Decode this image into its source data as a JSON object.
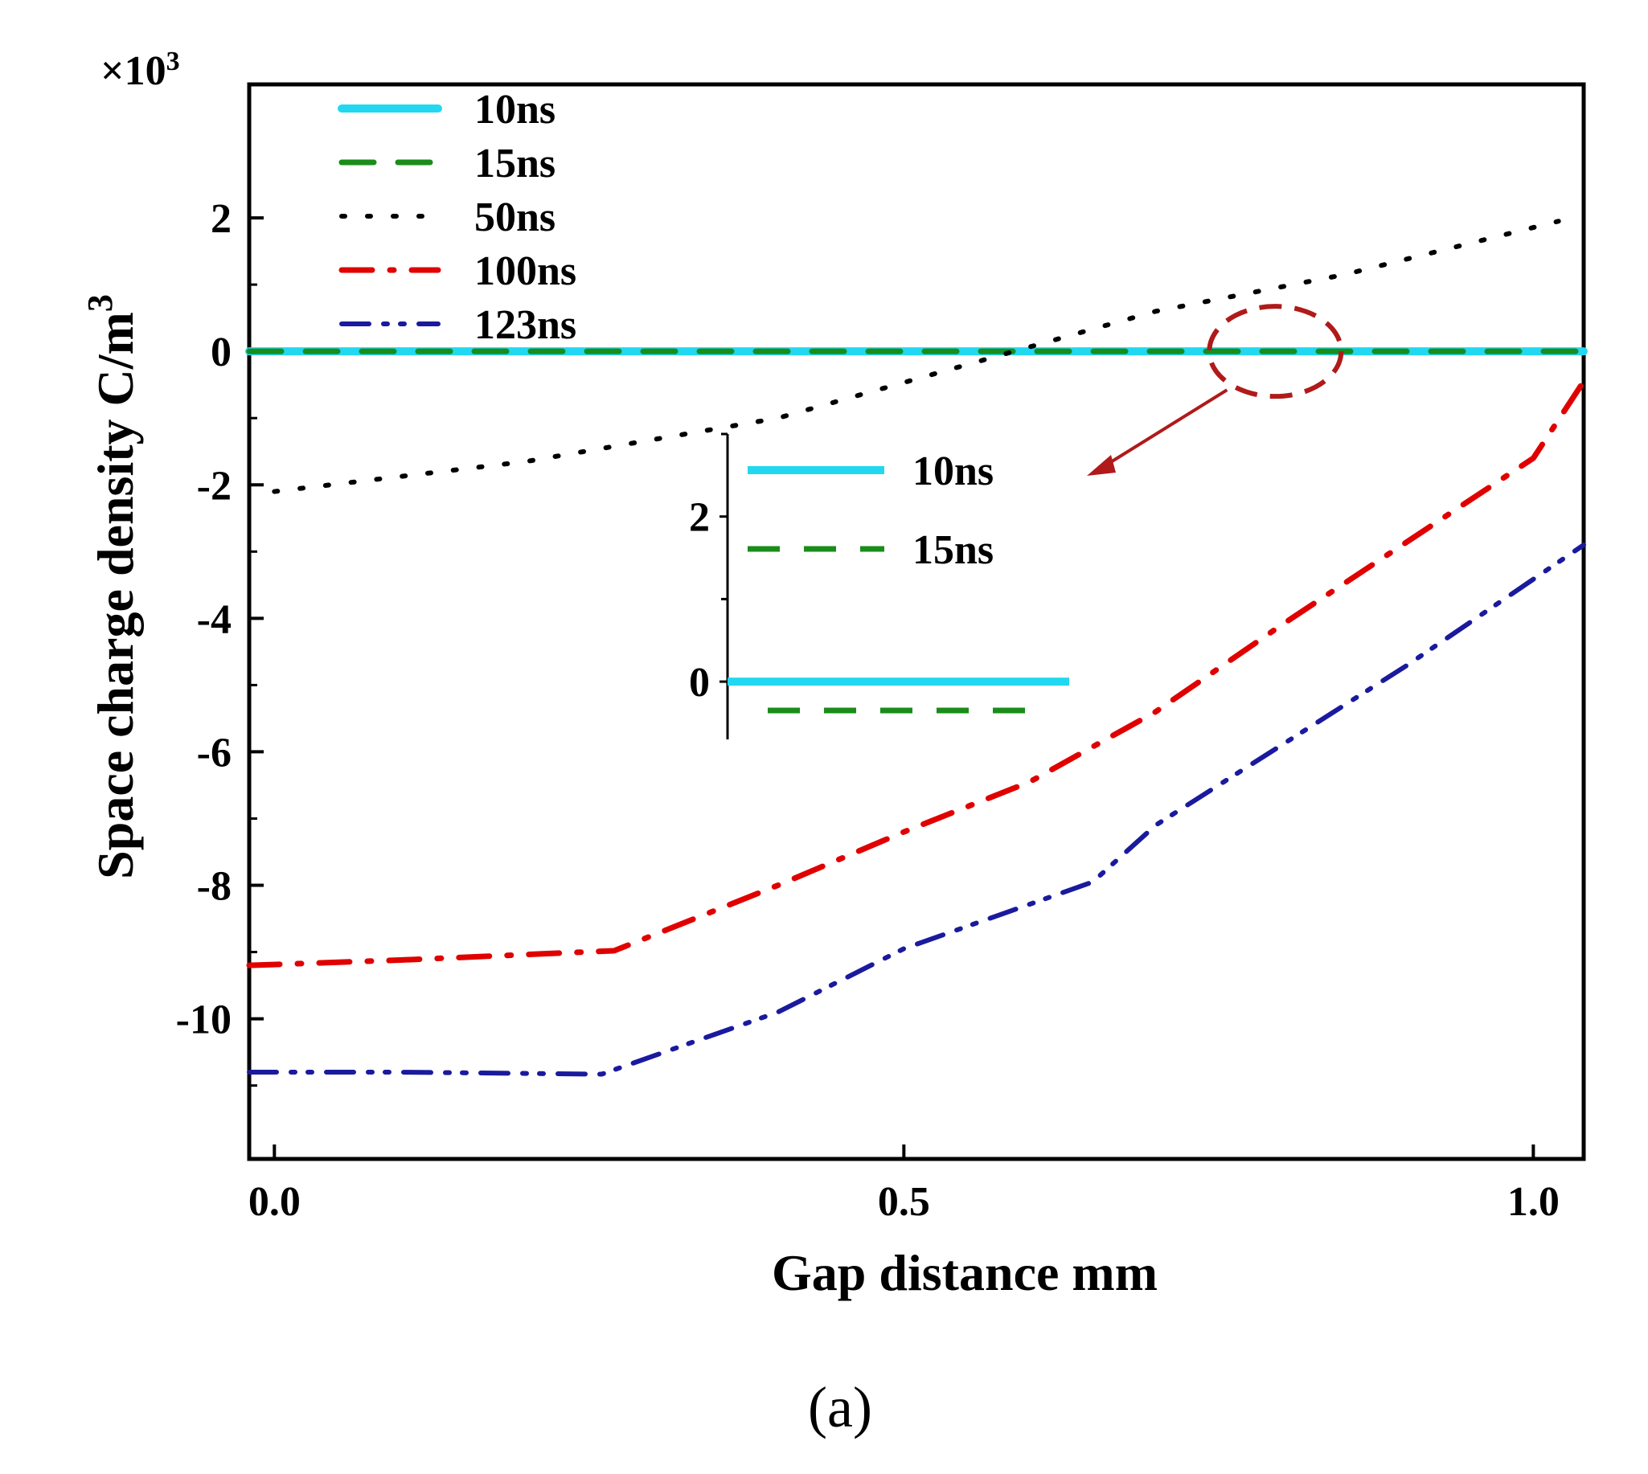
{
  "chart_data": {
    "type": "line",
    "xlabel": "Gap distance mm",
    "ylabel": "Space charge density C/m",
    "ylabel_sup": "3",
    "y_multiplier": "×10",
    "y_multiplier_sup": "3",
    "panel_label": "(a)",
    "xlim": [
      -0.02,
      1.04
    ],
    "ylim": [
      -12.1,
      4.0
    ],
    "x_ticks": [
      0.0,
      0.5,
      1.0
    ],
    "x_tick_labels": [
      "0.0",
      "0.5",
      "1.0"
    ],
    "y_ticks": [
      2,
      0,
      -2,
      -4,
      -6,
      -8,
      -10
    ],
    "y_tick_labels": [
      "2",
      "0",
      "-2",
      "-4",
      "-6",
      "-8",
      "-10"
    ],
    "grid": false,
    "legend_position": "top-left",
    "series": [
      {
        "name": "10ns",
        "color": "#22d8f0",
        "style": "solid",
        "x": [
          -0.02,
          1.04
        ],
        "y": [
          0,
          0
        ]
      },
      {
        "name": "15ns",
        "color": "#1a8c1a",
        "style": "dashed",
        "x": [
          -0.02,
          1.04
        ],
        "y": [
          0,
          0
        ]
      },
      {
        "name": "50ns",
        "color": "#000000",
        "style": "dotted",
        "x": [
          0.0,
          0.2,
          0.4,
          0.55,
          0.7,
          0.85,
          1.02
        ],
        "y": [
          -2.1,
          -1.65,
          -1.0,
          -0.2,
          0.6,
          1.15,
          1.95
        ]
      },
      {
        "name": "100ns",
        "color": "#e00000",
        "style": "dashdot",
        "x": [
          -0.02,
          0.1,
          0.27,
          0.4,
          0.5,
          0.6,
          0.7,
          0.8,
          0.9,
          1.0,
          1.04
        ],
        "y": [
          -9.2,
          -9.12,
          -8.98,
          -8.0,
          -7.2,
          -6.45,
          -5.4,
          -4.1,
          -2.85,
          -1.6,
          -0.45
        ]
      },
      {
        "name": "123ns",
        "color": "#1a1a9e",
        "style": "dashdotdot",
        "x": [
          -0.02,
          0.1,
          0.26,
          0.4,
          0.5,
          0.65,
          0.7,
          0.8,
          0.9,
          1.04
        ],
        "y": [
          -10.8,
          -10.8,
          -10.83,
          -9.9,
          -8.95,
          -7.95,
          -7.1,
          -5.9,
          -4.7,
          -2.9
        ]
      }
    ],
    "annotation": {
      "type": "zoom-ellipse",
      "center_x": 0.795,
      "center_y": 0.0,
      "color": "#b01a1a"
    },
    "inset": {
      "y_ticks": [
        2,
        0
      ],
      "y_tick_labels": [
        "2",
        "0"
      ],
      "ylim": [
        -0.7,
        3.0
      ],
      "series": [
        {
          "name": "10ns",
          "color": "#22d8f0",
          "style": "solid",
          "y": 0.0
        },
        {
          "name": "15ns",
          "color": "#1a8c1a",
          "style": "dashed",
          "y": -0.35
        }
      ]
    }
  }
}
